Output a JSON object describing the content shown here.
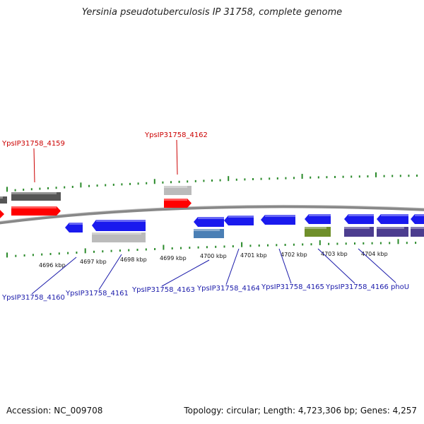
{
  "title": "Yersinia pseudotuberculosis IP 31758, complete genome",
  "footer": {
    "accession": "Accession: NC_009708",
    "topology": "Topology: circular; Length: 4,723,306 bp; Genes: 4,257"
  },
  "colors": {
    "backbone": "#888888",
    "tick": "#2a8a2a",
    "forward_label": "#cc0000",
    "reverse_label": "#1a1aaa",
    "red_gene": "#ff0000",
    "dark_gray_gene": "#555555",
    "light_gray_gene": "#bbbbbb",
    "blue_gene": "#1a1aee",
    "steel_blue_gene": "#4a7fb5",
    "olive_gene": "#6f8f2a",
    "purple_gene": "#4c3d8f"
  },
  "scale_labels": [
    "4696 kbp",
    "4697 kbp",
    "4698 kbp",
    "4699 kbp",
    "4700 kbp",
    "4701 kbp",
    "4702 kbp",
    "4703 kbp",
    "4704 kbp"
  ],
  "forward_labels": [
    "YpsIP31758_4159",
    "YpsIP31758_4162"
  ],
  "reverse_labels": [
    "YpsIP31758_4160",
    "YpsIP31758_4161",
    "YpsIP31758_4163",
    "YpsIP31758_4164",
    "YpsIP31758_4165",
    "YpsIP31758_4166",
    "phoU"
  ]
}
